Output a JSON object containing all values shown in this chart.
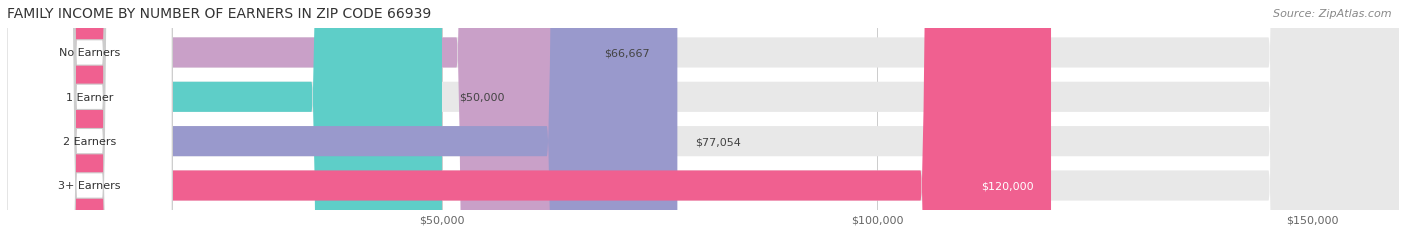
{
  "title": "FAMILY INCOME BY NUMBER OF EARNERS IN ZIP CODE 66939",
  "source": "Source: ZipAtlas.com",
  "categories": [
    "No Earners",
    "1 Earner",
    "2 Earners",
    "3+ Earners"
  ],
  "values": [
    66667,
    50000,
    77054,
    120000
  ],
  "value_labels": [
    "$66,667",
    "$50,000",
    "$77,054",
    "$120,000"
  ],
  "bar_colors": [
    "#c9a0c8",
    "#5ecec8",
    "#9999cc",
    "#f06090"
  ],
  "label_text_colors": [
    "#333333",
    "#333333",
    "#333333",
    "#ffffff"
  ],
  "xmin": 0,
  "xmax": 160000,
  "xticks": [
    50000,
    100000,
    150000
  ],
  "xtick_labels": [
    "$50,000",
    "$100,000",
    "$150,000"
  ],
  "title_fontsize": 10,
  "source_fontsize": 8,
  "bar_label_fontsize": 8,
  "cat_label_fontsize": 8,
  "axis_label_fontsize": 8,
  "background_color": "#ffffff",
  "fig_width": 14.06,
  "fig_height": 2.32,
  "dpi": 100
}
